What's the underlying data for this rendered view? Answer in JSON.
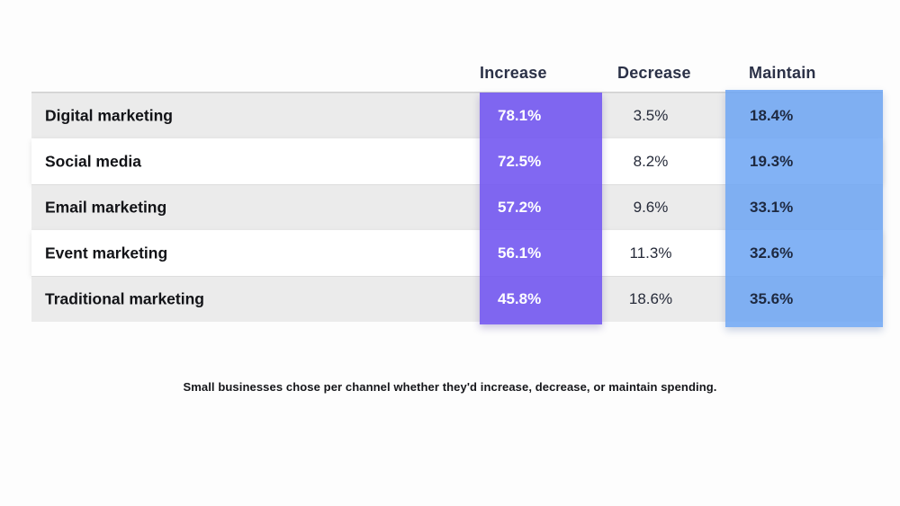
{
  "chart_data": {
    "type": "table",
    "title": "",
    "columns": [
      "Increase",
      "Decrease",
      "Maintain"
    ],
    "categories": [
      "Digital marketing",
      "Social media",
      "Email marketing",
      "Event marketing",
      "Traditional marketing"
    ],
    "series": [
      {
        "name": "Increase",
        "values": [
          78.1,
          72.5,
          57.2,
          56.1,
          45.8
        ]
      },
      {
        "name": "Decrease",
        "values": [
          3.5,
          8.2,
          9.6,
          11.3,
          18.6
        ]
      },
      {
        "name": "Maintain",
        "values": [
          18.4,
          19.3,
          33.1,
          32.6,
          35.6
        ]
      }
    ],
    "unit": "%",
    "caption": "Small businesses chose per channel whether they'd increase, decrease, or maintain spending.",
    "legend_position": "none",
    "grid": false
  },
  "rows": [
    {
      "label": "Digital marketing",
      "increase": "78.1%",
      "decrease": "3.5%",
      "maintain": "18.4%"
    },
    {
      "label": "Social media",
      "increase": "72.5%",
      "decrease": "8.2%",
      "maintain": "19.3%"
    },
    {
      "label": "Email marketing",
      "increase": "57.2%",
      "decrease": "9.6%",
      "maintain": "33.1%"
    },
    {
      "label": "Event marketing",
      "increase": "56.1%",
      "decrease": "11.3%",
      "maintain": "32.6%"
    },
    {
      "label": "Traditional marketing",
      "increase": "45.8%",
      "decrease": "18.6%",
      "maintain": "35.6%"
    }
  ],
  "colors": {
    "increase_band": "#7053f0",
    "maintain_band": "#6ca5f3",
    "row_stripe": "#ebebeb",
    "row_plain": "#ffffff",
    "header_text": "#2b3147",
    "increase_value_text": "#ffffff",
    "decrease_value_text": "#262b3a",
    "maintain_value_text": "#1e2940",
    "background": "#fdfdfd"
  }
}
